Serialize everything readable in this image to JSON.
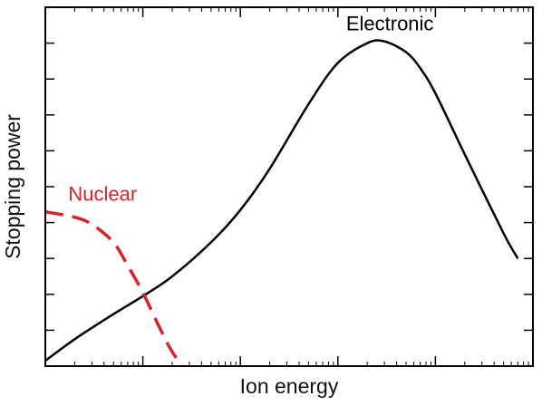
{
  "chart_data": {
    "type": "line",
    "title": "",
    "xlabel": "Ion energy",
    "ylabel": "Stopping power",
    "x_scale": "log",
    "y_scale": "linear",
    "x_tick_labels": [],
    "y_tick_labels": [],
    "xlim": [
      1,
      100000
    ],
    "ylim": [
      0,
      10
    ],
    "grid": false,
    "legend": "none",
    "series": [
      {
        "name": "Electronic",
        "color": "#000000",
        "line_style": "solid",
        "x": [
          1,
          2,
          5,
          10,
          20,
          50,
          100,
          200,
          500,
          1000,
          2000,
          3000,
          5000,
          7000,
          10000,
          20000,
          50000,
          70000
        ],
        "y": [
          0.15,
          0.75,
          1.45,
          1.95,
          2.5,
          3.45,
          4.35,
          5.5,
          7.3,
          8.45,
          9.0,
          9.05,
          8.75,
          8.3,
          7.6,
          5.9,
          3.7,
          3.0
        ]
      },
      {
        "name": "Nuclear",
        "color": "#d8232a",
        "line_style": "dashed",
        "x": [
          1,
          2,
          3,
          5,
          7,
          10,
          15,
          20,
          30
        ],
        "y": [
          4.3,
          4.15,
          3.95,
          3.45,
          2.8,
          2.05,
          1.05,
          0.4,
          -0.3
        ]
      }
    ],
    "annotations": [
      {
        "text": "Electronic",
        "series": "Electronic"
      },
      {
        "text": "Nuclear",
        "series": "Nuclear"
      }
    ]
  }
}
